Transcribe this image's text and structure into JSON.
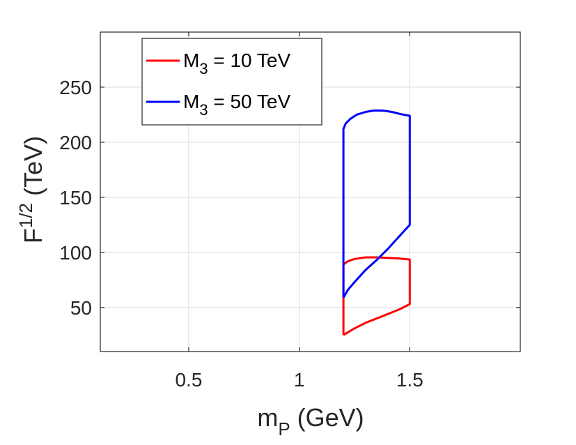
{
  "chart_data": {
    "type": "line",
    "xlabel": {
      "base": "m",
      "sub": "P",
      "unit": " (GeV)"
    },
    "ylabel": {
      "base": "F",
      "sup": "1/2",
      "unit": " (TeV)"
    },
    "xlim": [
      0.1,
      2.0
    ],
    "ylim": [
      10,
      300
    ],
    "xticks": [
      0.5,
      1,
      1.5
    ],
    "xtick_labels": [
      "0.5",
      "1",
      "1.5"
    ],
    "yticks": [
      50,
      100,
      150,
      200,
      250
    ],
    "ytick_labels": [
      "50",
      "100",
      "150",
      "200",
      "250"
    ],
    "grid": true,
    "legend_position": "top-left",
    "series": [
      {
        "name": "M_3 = 10 TeV",
        "label_base": "M",
        "label_sub": "3",
        "label_rest": " = 10 TeV",
        "color": "#ff0000",
        "x": [
          1.2,
          1.2,
          1.22,
          1.25,
          1.3,
          1.35,
          1.4,
          1.45,
          1.5,
          1.5,
          1.45,
          1.4,
          1.35,
          1.3,
          1.25,
          1.2
        ],
        "y": [
          25,
          89,
          92,
          94,
          95.5,
          95.5,
          95,
          94.5,
          93.5,
          53,
          48,
          44,
          40,
          36,
          31,
          25
        ]
      },
      {
        "name": "M_3 = 50 TeV",
        "label_base": "M",
        "label_sub": "3",
        "label_rest": " = 50 TeV",
        "color": "#0000ff",
        "x": [
          1.2,
          1.2,
          1.21,
          1.23,
          1.26,
          1.3,
          1.34,
          1.38,
          1.42,
          1.46,
          1.5,
          1.5,
          1.45,
          1.4,
          1.35,
          1.3,
          1.25,
          1.22,
          1.2
        ],
        "y": [
          59,
          212,
          217,
          221,
          225,
          227.5,
          228.8,
          228.7,
          227.5,
          225.5,
          224,
          125,
          114,
          103,
          93,
          84,
          73,
          66,
          59
        ]
      }
    ]
  }
}
